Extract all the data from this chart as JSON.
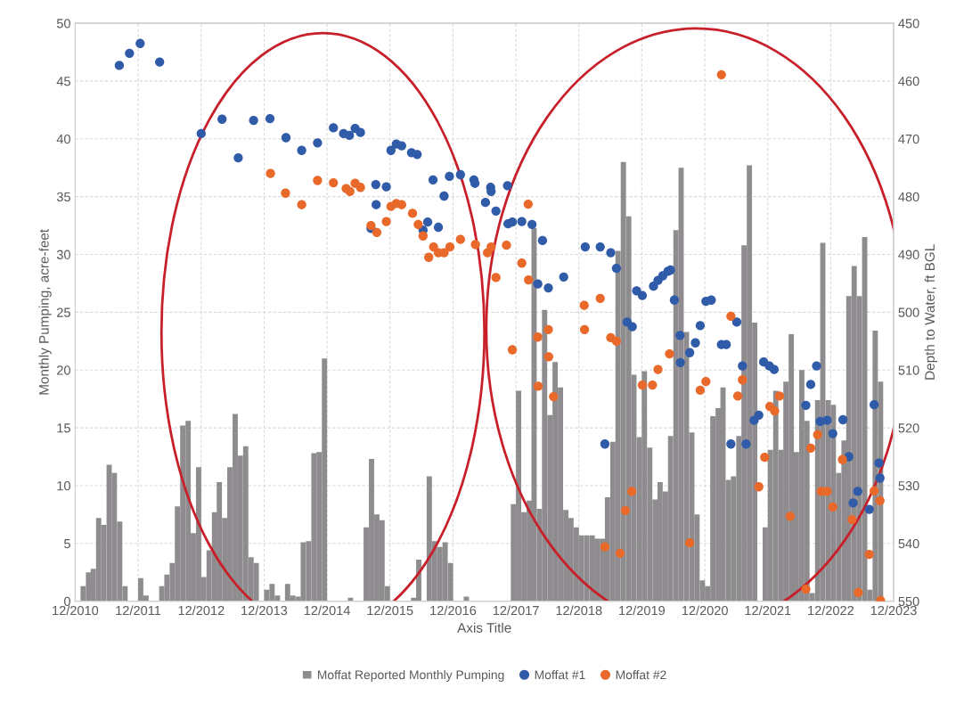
{
  "chart_data": {
    "type": "bar",
    "xlabel": "Axis Title",
    "ylabel": "Monthly Pumping, acre-feet",
    "y2label": "Depth to Water, ft BGL",
    "xlim": [
      "2010-12",
      "2023-12"
    ],
    "xticks": [
      {
        "value": "2010-12",
        "label": "12/2010"
      },
      {
        "value": "2011-12",
        "label": "12/2011"
      },
      {
        "value": "2012-12",
        "label": "12/2012"
      },
      {
        "value": "2013-12",
        "label": "12/2013"
      },
      {
        "value": "2014-12",
        "label": "12/2014"
      },
      {
        "value": "2015-12",
        "label": "12/2015"
      },
      {
        "value": "2016-12",
        "label": "12/2016"
      },
      {
        "value": "2017-12",
        "label": "12/2017"
      },
      {
        "value": "2018-12",
        "label": "12/2018"
      },
      {
        "value": "2019-12",
        "label": "12/2019"
      },
      {
        "value": "2020-12",
        "label": "12/2020"
      },
      {
        "value": "2021-12",
        "label": "12/2021"
      },
      {
        "value": "2022-12",
        "label": "12/2022"
      },
      {
        "value": "2023-12",
        "label": "12/2023"
      }
    ],
    "ylim": [
      0,
      50
    ],
    "yticks": [
      0,
      5,
      10,
      15,
      20,
      25,
      30,
      35,
      40,
      45,
      50
    ],
    "y2lim": [
      550,
      450
    ],
    "y2ticks": [
      450,
      460,
      470,
      480,
      490,
      500,
      510,
      520,
      530,
      540,
      550
    ],
    "grid": true,
    "legend": "bottom",
    "series": [
      {
        "name": "Moffat Reported Monthly Pumping",
        "color": "#8f8c8f",
        "x": [
          "2011-01",
          "2011-02",
          "2011-03",
          "2011-04",
          "2011-05",
          "2011-06",
          "2011-07",
          "2011-08",
          "2011-09",
          "2011-12",
          "2012-01",
          "2012-04",
          "2012-05",
          "2012-06",
          "2012-07",
          "2012-08",
          "2012-09",
          "2012-10",
          "2012-11",
          "2012-12",
          "2013-01",
          "2013-02",
          "2013-03",
          "2013-04",
          "2013-05",
          "2013-06",
          "2013-07",
          "2013-08",
          "2013-09",
          "2013-10",
          "2013-12",
          "2014-01",
          "2014-02",
          "2014-04",
          "2014-05",
          "2014-06",
          "2014-07",
          "2014-08",
          "2014-09",
          "2014-10",
          "2014-11",
          "2015-04",
          "2015-07",
          "2015-08",
          "2015-09",
          "2015-10",
          "2015-11",
          "2016-04",
          "2016-05",
          "2016-07",
          "2016-08",
          "2016-09",
          "2016-10",
          "2016-11",
          "2017-02",
          "2017-11",
          "2017-12",
          "2018-01",
          "2018-02",
          "2018-03",
          "2018-04",
          "2018-05",
          "2018-06",
          "2018-07",
          "2018-08",
          "2018-09",
          "2018-10",
          "2018-11",
          "2018-12",
          "2019-01",
          "2019-02",
          "2019-03",
          "2019-04",
          "2019-05",
          "2019-06",
          "2019-07",
          "2019-08",
          "2019-09",
          "2019-10",
          "2019-11",
          "2019-12",
          "2020-01",
          "2020-02",
          "2020-03",
          "2020-04",
          "2020-05",
          "2020-06",
          "2020-07",
          "2020-08",
          "2020-09",
          "2020-10",
          "2020-11",
          "2020-12",
          "2021-01",
          "2021-02",
          "2021-03",
          "2021-04",
          "2021-05",
          "2021-06",
          "2021-07",
          "2021-08",
          "2021-09",
          "2021-11",
          "2021-12",
          "2022-01",
          "2022-02",
          "2022-03",
          "2022-04",
          "2022-05",
          "2022-06",
          "2022-07",
          "2022-08",
          "2022-09",
          "2022-10",
          "2022-11",
          "2022-12",
          "2023-01",
          "2023-02",
          "2023-03",
          "2023-04",
          "2023-05",
          "2023-06",
          "2023-07",
          "2023-08",
          "2023-09"
        ],
        "values": [
          1.3,
          2.5,
          2.8,
          7.2,
          6.6,
          11.8,
          11.1,
          6.9,
          1.3,
          2.0,
          0.5,
          1.3,
          2.3,
          3.3,
          8.2,
          15.2,
          15.6,
          5.9,
          11.6,
          2.1,
          4.4,
          7.7,
          10.3,
          7.2,
          11.6,
          16.2,
          12.6,
          13.4,
          3.8,
          3.3,
          1.0,
          1.5,
          0.5,
          1.5,
          0.5,
          0.4,
          5.1,
          5.2,
          12.8,
          12.9,
          21.0,
          0.3,
          6.4,
          12.3,
          7.5,
          7.0,
          1.3,
          0.3,
          3.6,
          10.8,
          5.2,
          4.7,
          5.1,
          3.3,
          0.4,
          8.4,
          18.2,
          7.7,
          8.7,
          32.3,
          8.0,
          25.2,
          16.1,
          20.7,
          18.5,
          7.9,
          7.2,
          6.4,
          5.7,
          5.7,
          5.7,
          5.4,
          5.4,
          9.0,
          13.8,
          30.3,
          38.0,
          33.3,
          19.6,
          14.2,
          19.9,
          13.3,
          8.8,
          10.3,
          9.5,
          14.3,
          32.1,
          37.5,
          23.3,
          14.6,
          7.5,
          1.8,
          1.3,
          16.0,
          16.7,
          18.5,
          10.5,
          10.8,
          14.3,
          30.8,
          37.7,
          24.1,
          6.4,
          13.1,
          18.2,
          13.1,
          19.0,
          23.1,
          12.9,
          20.0,
          15.6,
          0.7,
          17.4,
          31.0,
          17.4,
          17.0,
          11.1,
          13.9,
          26.4,
          29.0,
          26.4,
          31.5,
          1.0,
          23.4,
          19.0
        ]
      },
      {
        "name": "Moffat #1",
        "type": "scatter",
        "axis": "y2",
        "marker": "circle",
        "color": "#2f5ba8",
        "x": [
          "2011-08-14",
          "2011-10-12",
          "2011-12-13",
          "2012-04-04",
          "2012-12-01",
          "2013-04-01",
          "2013-07-04",
          "2013-10-01",
          "2014-01-04",
          "2014-04-07",
          "2014-07-07",
          "2014-10-07",
          "2015-01-07",
          "2015-03-07",
          "2015-04-10",
          "2015-05-13",
          "2015-06-13",
          "2015-08-13",
          "2015-09-10",
          "2015-09-12",
          "2015-11-10",
          "2015-12-07",
          "2016-01-07",
          "2016-02-07",
          "2016-04-04",
          "2016-05-07",
          "2016-06-10",
          "2016-07-07",
          "2016-08-07",
          "2016-09-07",
          "2016-10-10",
          "2016-11-10",
          "2017-01-13",
          "2017-04-01",
          "2017-04-07",
          "2017-06-07",
          "2017-07-07",
          "2017-07-10",
          "2017-08-07",
          "2017-10-13",
          "2017-10-16",
          "2017-11-10",
          "2018-01-04",
          "2018-03-04",
          "2018-04-07",
          "2018-05-04",
          "2018-06-07",
          "2018-09-04",
          "2019-01-07",
          "2019-04-04",
          "2019-05-01",
          "2019-06-04",
          "2019-07-07",
          "2019-09-07",
          "2019-10-07",
          "2019-11-01",
          "2019-12-04",
          "2020-02-07",
          "2020-03-04",
          "2020-04-01",
          "2020-05-01",
          "2020-05-16",
          "2020-06-07",
          "2020-07-10",
          "2020-07-12",
          "2020-09-04",
          "2020-10-07",
          "2020-11-04",
          "2020-12-07",
          "2021-01-07",
          "2021-03-07",
          "2021-04-04",
          "2021-05-01",
          "2021-06-04",
          "2021-07-07",
          "2021-07-28",
          "2021-09-13",
          "2021-10-10",
          "2021-11-07",
          "2021-12-10",
          "2022-01-07",
          "2022-07-10",
          "2022-08-07",
          "2022-09-10",
          "2022-10-01",
          "2022-11-10",
          "2022-12-13",
          "2023-02-10",
          "2023-03-16",
          "2023-04-10",
          "2023-05-07",
          "2023-07-13",
          "2023-08-10",
          "2023-09-07",
          "2023-09-13"
        ],
        "values": [
          457.3,
          455.2,
          453.5,
          456.7,
          469.1,
          466.6,
          473.3,
          466.8,
          466.5,
          469.8,
          472.0,
          470.7,
          468.1,
          469.1,
          469.4,
          468.2,
          468.9,
          485.5,
          477.9,
          481.4,
          478.3,
          472.0,
          470.9,
          471.2,
          472.4,
          472.7,
          485.8,
          484.4,
          477.1,
          485.3,
          479.9,
          476.5,
          476.2,
          477.1,
          477.7,
          481.0,
          478.4,
          479.1,
          482.5,
          478.1,
          484.7,
          484.4,
          484.3,
          484.8,
          495.1,
          487.6,
          495.8,
          493.9,
          488.7,
          488.7,
          522.8,
          489.7,
          492.4,
          501.7,
          502.5,
          496.3,
          497.1,
          495.5,
          494.5,
          493.7,
          492.9,
          492.7,
          497.9,
          504.0,
          508.7,
          507.0,
          505.3,
          502.3,
          498.1,
          497.9,
          505.6,
          505.6,
          522.8,
          501.7,
          509.3,
          522.8,
          518.7,
          517.8,
          508.6,
          509.3,
          509.9,
          516.1,
          512.5,
          509.3,
          518.9,
          518.7,
          521.0,
          518.6,
          525.0,
          533.0,
          531.0,
          534.1,
          516.0,
          526.1,
          528.7
        ]
      },
      {
        "name": "Moffat #2",
        "type": "scatter",
        "axis": "y2",
        "marker": "circle",
        "color": "#e8692a",
        "x": [
          "2014-01-07",
          "2014-04-04",
          "2014-07-07",
          "2014-10-07",
          "2015-01-07",
          "2015-03-22",
          "2015-04-13",
          "2015-05-13",
          "2015-06-13",
          "2015-08-13",
          "2015-09-16",
          "2015-11-10",
          "2015-12-07",
          "2016-01-07",
          "2016-02-07",
          "2016-04-10",
          "2016-05-13",
          "2016-06-10",
          "2016-07-13",
          "2016-08-10",
          "2016-09-07",
          "2016-10-10",
          "2016-11-13",
          "2017-01-13",
          "2017-04-10",
          "2017-06-19",
          "2017-07-10",
          "2017-08-07",
          "2017-10-07",
          "2017-11-10",
          "2018-01-04",
          "2018-02-10",
          "2018-02-12",
          "2018-04-07",
          "2018-04-09",
          "2018-06-07",
          "2018-06-09",
          "2018-07-07",
          "2019-01-01",
          "2019-01-03",
          "2019-04-04",
          "2019-05-01",
          "2019-06-04",
          "2019-07-07",
          "2019-07-28",
          "2019-08-28",
          "2019-10-04",
          "2019-12-04",
          "2020-02-01",
          "2020-03-04",
          "2020-05-10",
          "2020-09-04",
          "2020-11-04",
          "2020-12-07",
          "2021-03-07",
          "2021-05-01",
          "2021-06-10",
          "2021-07-07",
          "2021-10-10",
          "2021-11-13",
          "2021-12-13",
          "2022-01-10",
          "2022-02-07",
          "2022-04-10",
          "2022-07-10",
          "2022-08-07",
          "2022-09-16",
          "2022-10-07",
          "2022-11-10",
          "2022-12-13",
          "2023-02-07",
          "2023-04-04",
          "2023-05-10",
          "2023-07-13",
          "2023-08-10",
          "2023-09-13",
          "2023-09-16"
        ],
        "values": [
          476.0,
          479.4,
          481.4,
          477.2,
          477.6,
          478.6,
          479.1,
          477.7,
          478.4,
          485.0,
          486.2,
          484.3,
          481.7,
          481.2,
          481.4,
          482.9,
          484.8,
          486.8,
          490.5,
          488.7,
          489.7,
          489.7,
          488.7,
          487.4,
          488.3,
          489.7,
          488.7,
          494.0,
          488.4,
          506.5,
          491.5,
          481.3,
          494.4,
          504.3,
          512.8,
          503.0,
          507.7,
          514.6,
          498.8,
          503.0,
          497.6,
          540.6,
          504.4,
          505.0,
          541.7,
          534.3,
          531.0,
          512.6,
          512.6,
          509.9,
          507.2,
          539.9,
          513.5,
          512.0,
          458.9,
          500.7,
          514.5,
          511.7,
          530.2,
          525.1,
          516.3,
          517.1,
          514.5,
          535.3,
          547.9,
          523.5,
          521.2,
          531.0,
          531.0,
          533.7,
          525.5,
          535.9,
          548.5,
          541.9,
          530.9,
          532.6,
          549.9
        ]
      }
    ]
  }
}
